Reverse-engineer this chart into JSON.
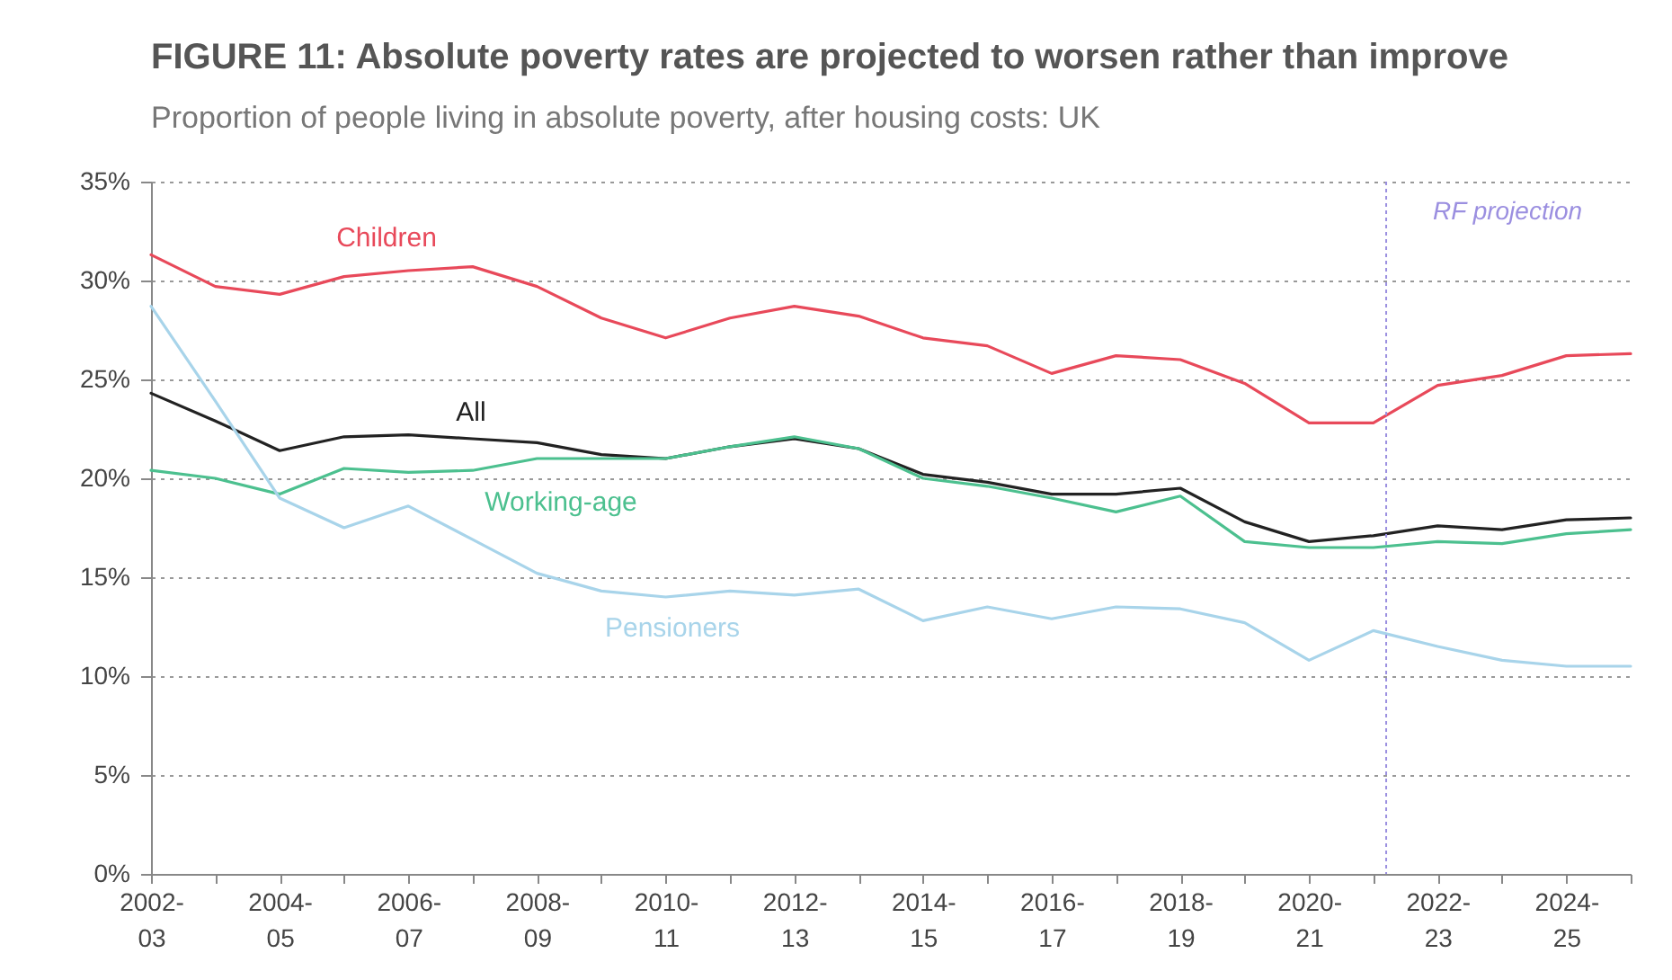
{
  "chart_data": {
    "type": "line",
    "title": "FIGURE 11: Absolute poverty rates are projected to worsen rather than improve",
    "subtitle": "Proportion of people living in absolute poverty, after housing costs: UK",
    "categories": [
      "2002-03",
      null,
      "2004-05",
      null,
      "2006-07",
      null,
      "2008-09",
      null,
      "2010-11",
      null,
      "2012-13",
      null,
      "2014-15",
      null,
      "2016-17",
      null,
      "2018-19",
      null,
      "2020-21",
      null,
      "2022-23",
      null,
      "2024-25",
      null
    ],
    "series": [
      {
        "name": "Children",
        "color": "#e8495a",
        "values": [
          31.3,
          29.7,
          29.3,
          30.2,
          30.5,
          30.7,
          29.7,
          28.1,
          27.1,
          28.1,
          28.7,
          28.2,
          27.1,
          26.7,
          25.3,
          26.2,
          26.0,
          24.8,
          22.8,
          22.8,
          24.7,
          25.2,
          26.2,
          26.3
        ]
      },
      {
        "name": "All",
        "color": "#222222",
        "values": [
          24.3,
          22.9,
          21.4,
          22.1,
          22.2,
          22.0,
          21.8,
          21.2,
          21.0,
          21.6,
          22.0,
          21.5,
          20.2,
          19.8,
          19.2,
          19.2,
          19.5,
          17.8,
          16.8,
          17.1,
          17.6,
          17.4,
          17.9,
          18.0
        ]
      },
      {
        "name": "Working-age",
        "color": "#4cc08f",
        "values": [
          20.4,
          20.0,
          19.2,
          20.5,
          20.3,
          20.4,
          21.0,
          21.0,
          21.0,
          21.6,
          22.1,
          21.5,
          20.0,
          19.6,
          19.0,
          18.3,
          19.1,
          16.8,
          16.5,
          16.5,
          16.8,
          16.7,
          17.2,
          17.4
        ]
      },
      {
        "name": "Pensioners",
        "color": "#a8d4ea",
        "values": [
          28.7,
          23.9,
          19.0,
          17.5,
          18.6,
          16.9,
          15.2,
          14.3,
          14.0,
          14.3,
          14.1,
          14.4,
          12.8,
          13.5,
          12.9,
          13.5,
          13.4,
          12.7,
          10.8,
          12.3,
          11.5,
          10.8,
          10.5,
          10.5
        ]
      }
    ],
    "ylim": [
      0,
      35
    ],
    "yticks": [
      {
        "value": 0,
        "label": "0%"
      },
      {
        "value": 5,
        "label": "5%"
      },
      {
        "value": 10,
        "label": "10%"
      },
      {
        "value": 15,
        "label": "15%"
      },
      {
        "value": 20,
        "label": "20%"
      },
      {
        "value": 25,
        "label": "25%"
      },
      {
        "value": 30,
        "label": "30%"
      },
      {
        "value": 35,
        "label": "35%"
      }
    ],
    "annotations": [
      "RF projection"
    ],
    "grid": "y",
    "legend": false,
    "line_style": "solid",
    "marker": "none"
  }
}
